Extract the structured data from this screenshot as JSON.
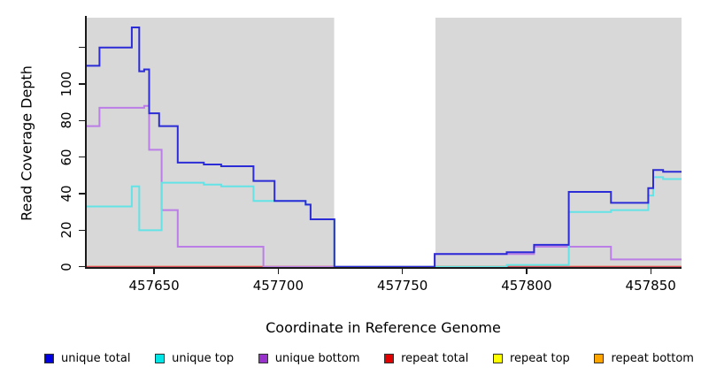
{
  "figure": {
    "x_axis_title": "Coordinate in Reference Genome",
    "y_axis_title": "Read Coverage Depth"
  },
  "chart_data": {
    "type": "line",
    "subtype": "step",
    "title": "",
    "xlabel": "Coordinate in Reference Genome",
    "ylabel": "Read Coverage Depth",
    "xlim": [
      457622.5,
      457862.4
    ],
    "ylim": [
      0,
      136.3
    ],
    "x_ticks": [
      457650,
      457700,
      457750,
      457800,
      457850
    ],
    "y_ticks": [
      0,
      20,
      40,
      60,
      80,
      100,
      120
    ],
    "y_tick_labels": [
      "0",
      "20",
      "40",
      "60",
      "80",
      "100",
      ""
    ],
    "grid": false,
    "legend_position": "bottom",
    "plot_background_color": "#d8d8d8",
    "uncovered_white_band": [
      457722.5,
      457763.3
    ],
    "series": [
      {
        "name": "unique total",
        "legend_color": "#0000e0",
        "line_color": "#2c2cd6",
        "points": [
          [
            457622.5,
            110
          ],
          [
            457628,
            120
          ],
          [
            457641,
            131
          ],
          [
            457644,
            107
          ],
          [
            457646,
            108
          ],
          [
            457648,
            84
          ],
          [
            457652,
            77
          ],
          [
            457659.5,
            57
          ],
          [
            457670,
            56
          ],
          [
            457677,
            55
          ],
          [
            457690,
            47
          ],
          [
            457698.5,
            36
          ],
          [
            457711,
            34
          ],
          [
            457713,
            26
          ],
          [
            457722.6,
            0
          ],
          [
            457763,
            7
          ],
          [
            457792,
            8
          ],
          [
            457803,
            12
          ],
          [
            457817,
            41
          ],
          [
            457834,
            35
          ],
          [
            457849,
            43
          ],
          [
            457851,
            53
          ],
          [
            457855,
            52
          ],
          [
            457862.4,
            52
          ]
        ]
      },
      {
        "name": "unique top",
        "legend_color": "#00e5e5",
        "line_color": "#63e3e6",
        "points": [
          [
            457622.5,
            33
          ],
          [
            457641,
            44
          ],
          [
            457644,
            20
          ],
          [
            457653,
            46
          ],
          [
            457670,
            45
          ],
          [
            457677,
            44
          ],
          [
            457690,
            36
          ],
          [
            457711,
            34
          ],
          [
            457713,
            26
          ],
          [
            457722.6,
            0
          ],
          [
            457792,
            1
          ],
          [
            457817,
            30
          ],
          [
            457834,
            31
          ],
          [
            457849,
            39
          ],
          [
            457851,
            49
          ],
          [
            457855,
            48
          ],
          [
            457862.4,
            48
          ]
        ]
      },
      {
        "name": "unique bottom",
        "legend_color": "#9932cc",
        "line_color": "#bb7de6",
        "points": [
          [
            457622.5,
            77
          ],
          [
            457628,
            87
          ],
          [
            457646,
            88
          ],
          [
            457648,
            64
          ],
          [
            457653,
            31
          ],
          [
            457659.5,
            11
          ],
          [
            457694,
            0
          ],
          [
            457763,
            7
          ],
          [
            457792,
            7
          ],
          [
            457803,
            11
          ],
          [
            457834,
            4
          ],
          [
            457862.4,
            4
          ]
        ]
      },
      {
        "name": "repeat total",
        "legend_color": "#e00000",
        "line_color": "#d64a5c",
        "points": [
          [
            457622.5,
            0
          ],
          [
            457862.4,
            0
          ]
        ]
      },
      {
        "name": "repeat top",
        "legend_color": "#ffff00",
        "line_color": "#f5e642",
        "points": [
          [
            457622.5,
            0
          ],
          [
            457862.4,
            0
          ]
        ]
      },
      {
        "name": "repeat bottom",
        "legend_color": "#ffa500",
        "line_color": "#ffa024",
        "points": [
          [
            457622.5,
            0
          ],
          [
            457862.4,
            0
          ]
        ]
      }
    ]
  }
}
